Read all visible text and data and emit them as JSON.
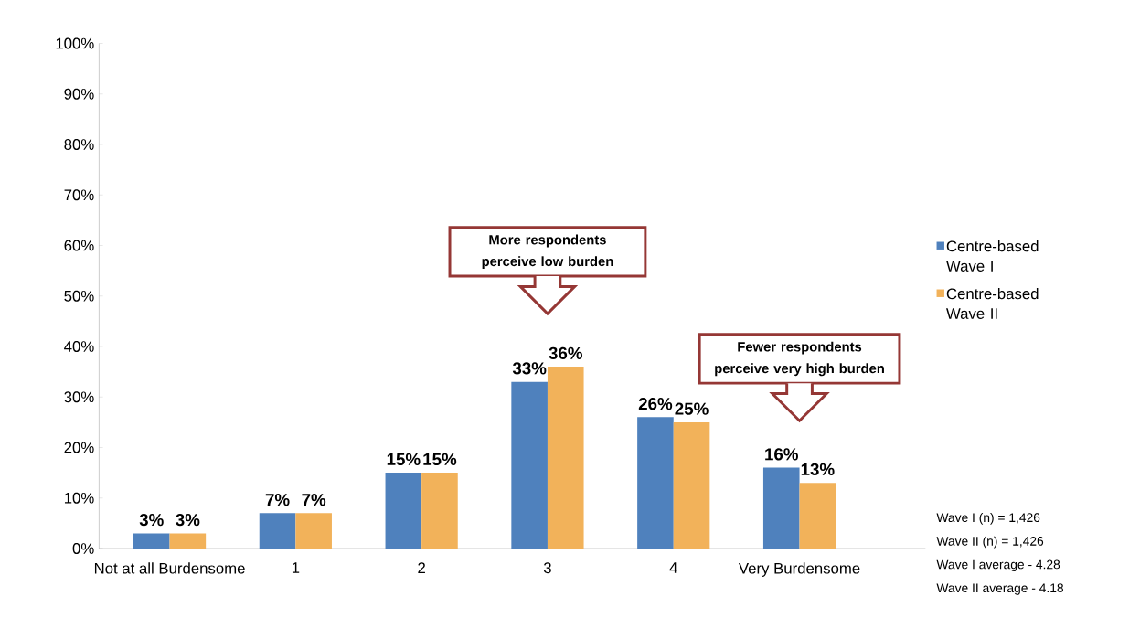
{
  "chart_data": {
    "type": "bar",
    "categories": [
      "Not at all Burdensome",
      "1",
      "2",
      "3",
      "4",
      "Very Burdensome"
    ],
    "series": [
      {
        "name": "Centre-based Wave I",
        "color": "#4f81bd",
        "values": [
          3,
          7,
          15,
          33,
          26,
          16
        ],
        "value_labels": [
          "3%",
          "7%",
          "15%",
          "33%",
          "26%",
          "16%"
        ]
      },
      {
        "name": "Centre-based Wave II",
        "color": "#f2b25a",
        "values": [
          3,
          7,
          15,
          36,
          25,
          13
        ],
        "value_labels": [
          "3%",
          "7%",
          "15%",
          "36%",
          "25%",
          "13%"
        ]
      }
    ],
    "ylim": [
      0,
      100
    ],
    "yticks": [
      {
        "value": 0,
        "label": "0%"
      },
      {
        "value": 10,
        "label": "10%"
      },
      {
        "value": 20,
        "label": "20%"
      },
      {
        "value": 30,
        "label": "30%"
      },
      {
        "value": 40,
        "label": "40%"
      },
      {
        "value": 50,
        "label": "50%"
      },
      {
        "value": 60,
        "label": "60%"
      },
      {
        "value": 70,
        "label": "70%"
      },
      {
        "value": 80,
        "label": "80%"
      },
      {
        "value": 90,
        "label": "90%"
      },
      {
        "value": 100,
        "label": "100%"
      }
    ],
    "grid": false,
    "legend": "right",
    "annotations": [
      "More respondents perceive low burden",
      "Fewer respondents perceive very high burden",
      "Wave I (n) = 1,426",
      "Wave II (n) = 1,426",
      "Wave I average - 4.28",
      "Wave II average - 4.18"
    ]
  }
}
